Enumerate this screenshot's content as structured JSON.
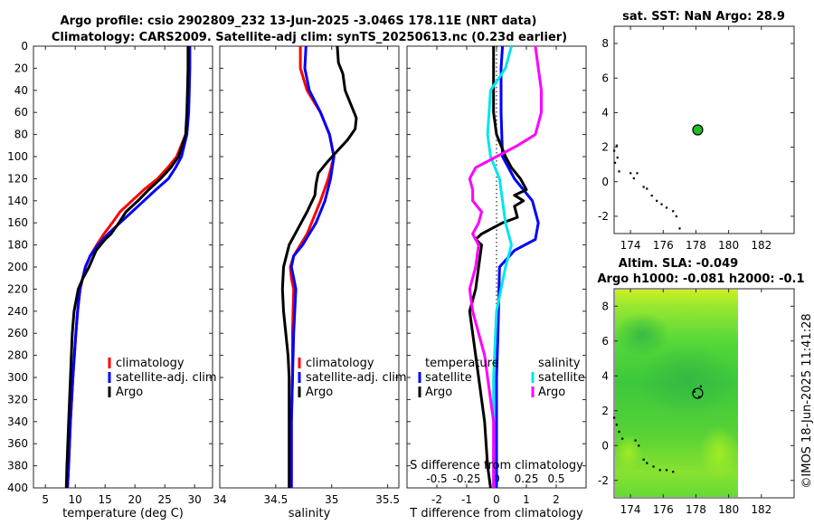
{
  "figure": {
    "title_line1": "Argo profile: csio 2902809_232 13-Jun-2025 -3.046S 178.11E (NRT data)",
    "title_line2": "Climatology: CARS2009. Satellite-adj clim: synTS_20250613.nc (0.23d earlier)",
    "credit": "©IMOS 18-Jun-2025 11:41:28"
  },
  "colors": {
    "climatology": "#ff0000",
    "satellite": "#0000ff",
    "argo": "#000000",
    "salinity_satellite": "#00e5ee",
    "salinity_argo": "#ff00ff",
    "map_green": "#44dd33",
    "marker": "#22bb22"
  },
  "chart_data": [
    {
      "type": "line",
      "id": "temperature",
      "xlabel": "temperature (deg C)",
      "xlim": [
        3,
        33
      ],
      "ylim": [
        0,
        400
      ],
      "xticks": [
        "5",
        "10",
        "15",
        "20",
        "25",
        "30"
      ],
      "xtick_values": [
        5,
        10,
        15,
        20,
        25,
        30
      ],
      "yticks": [
        "0",
        "20",
        "40",
        "60",
        "80",
        "100",
        "120",
        "140",
        "160",
        "180",
        "200",
        "220",
        "240",
        "260",
        "280",
        "300",
        "320",
        "340",
        "360",
        "380",
        "400"
      ],
      "legend": [
        "climatology",
        "satellite-adj. clim",
        "Argo"
      ],
      "series": [
        {
          "name": "climatology",
          "color_key": "climatology",
          "depth": [
            0,
            20,
            40,
            60,
            80,
            100,
            110,
            120,
            130,
            140,
            150,
            160,
            170,
            180,
            190,
            200,
            220,
            240,
            260,
            300,
            340,
            380,
            400
          ],
          "values": [
            29.0,
            29.0,
            28.9,
            28.8,
            28.5,
            27.0,
            25.5,
            23.8,
            21.5,
            19.5,
            17.5,
            16.2,
            14.8,
            13.6,
            12.5,
            11.7,
            10.8,
            10.4,
            10.1,
            9.6,
            9.2,
            8.9,
            8.7
          ]
        },
        {
          "name": "satellite-adj. clim",
          "color_key": "satellite",
          "depth": [
            0,
            20,
            40,
            60,
            80,
            100,
            110,
            120,
            130,
            140,
            150,
            160,
            170,
            180,
            190,
            200,
            220,
            240,
            260,
            300,
            340,
            380,
            400
          ],
          "values": [
            29.2,
            29.2,
            29.1,
            29.0,
            28.7,
            27.8,
            26.8,
            25.6,
            23.5,
            21.5,
            19.5,
            17.5,
            15.5,
            13.8,
            12.5,
            11.7,
            10.8,
            10.4,
            10.1,
            9.6,
            9.2,
            8.9,
            8.7
          ]
        },
        {
          "name": "Argo",
          "color_key": "argo",
          "depth": [
            0,
            20,
            40,
            60,
            80,
            100,
            110,
            120,
            130,
            140,
            150,
            160,
            170,
            175,
            185,
            200,
            210,
            220,
            240,
            260,
            300,
            340,
            380,
            400
          ],
          "values": [
            28.9,
            28.9,
            28.8,
            28.7,
            28.5,
            27.3,
            26.0,
            24.3,
            22.3,
            20.5,
            18.5,
            17.3,
            16.0,
            15.0,
            13.5,
            12.3,
            11.3,
            10.5,
            9.8,
            9.5,
            9.2,
            8.9,
            8.6,
            8.5
          ]
        }
      ]
    },
    {
      "type": "line",
      "id": "salinity",
      "xlabel": "salinity",
      "xlim": [
        34.0,
        35.6
      ],
      "ylim": [
        0,
        400
      ],
      "xticks": [
        "34",
        "34.5",
        "35",
        "35.5"
      ],
      "xtick_values": [
        34.0,
        34.5,
        35.0,
        35.5
      ],
      "legend": [
        "climatology",
        "satellite-adj. clim",
        "Argo"
      ],
      "series": [
        {
          "name": "climatology",
          "color_key": "climatology",
          "depth": [
            0,
            20,
            40,
            60,
            80,
            100,
            120,
            140,
            160,
            170,
            180,
            190,
            200,
            210,
            220,
            260,
            300,
            340,
            380,
            400
          ],
          "values": [
            34.72,
            34.72,
            34.78,
            34.9,
            34.98,
            35.02,
            34.97,
            34.9,
            34.82,
            34.78,
            34.72,
            34.66,
            34.63,
            34.64,
            34.66,
            34.65,
            34.65,
            34.64,
            34.64,
            34.64
          ]
        },
        {
          "name": "satellite-adj. clim",
          "color_key": "satellite",
          "depth": [
            0,
            20,
            40,
            60,
            80,
            100,
            120,
            140,
            160,
            170,
            180,
            190,
            200,
            210,
            220,
            260,
            300,
            340,
            380,
            400
          ],
          "values": [
            34.77,
            34.76,
            34.8,
            34.9,
            34.98,
            35.02,
            34.99,
            34.94,
            34.86,
            34.8,
            34.74,
            34.66,
            34.64,
            34.66,
            34.68,
            34.66,
            34.65,
            34.64,
            34.64,
            34.64
          ]
        },
        {
          "name": "Argo",
          "color_key": "argo",
          "depth": [
            0,
            15,
            25,
            40,
            55,
            65,
            75,
            85,
            95,
            105,
            115,
            125,
            135,
            150,
            165,
            180,
            200,
            220,
            240,
            260,
            280,
            300,
            340,
            380,
            400
          ],
          "values": [
            35.05,
            35.06,
            35.1,
            35.12,
            35.18,
            35.22,
            35.21,
            35.14,
            35.05,
            34.96,
            34.88,
            34.86,
            34.85,
            34.78,
            34.7,
            34.62,
            34.57,
            34.56,
            34.57,
            34.59,
            34.61,
            34.62,
            34.62,
            34.62,
            34.62
          ]
        }
      ]
    },
    {
      "type": "line",
      "id": "difference",
      "xlabel": "T difference from climatology",
      "xlabel_top": "S difference from climatology",
      "xlim": [
        -3,
        3
      ],
      "ylim": [
        0,
        400
      ],
      "xticks": [
        "-2",
        "-1",
        "0",
        "1",
        "2"
      ],
      "xtick_values": [
        -2,
        -1,
        0,
        1,
        2
      ],
      "top_ticks": [
        "-0.5",
        "-0.25",
        "0",
        "0.25",
        "0.5"
      ],
      "top_tick_values": [
        -0.5,
        -0.25,
        0,
        0.25,
        0.5
      ],
      "top_scale": 4,
      "legend_temperature_title": "temperature",
      "legend_salinity_title": "salinity",
      "legend_temperature": [
        "satellite",
        "Argo"
      ],
      "legend_salinity": [
        "satellite",
        "Argo"
      ],
      "series": [
        {
          "name": "T satellite",
          "color_key": "satellite",
          "depth": [
            0,
            20,
            60,
            100,
            120,
            140,
            160,
            175,
            185,
            200,
            260,
            300,
            340,
            400
          ],
          "values": [
            0.2,
            0.15,
            0.15,
            0.2,
            0.6,
            1.2,
            1.4,
            1.3,
            0.6,
            0.1,
            0.05,
            0.0,
            0.0,
            0.0
          ]
        },
        {
          "name": "T Argo",
          "color_key": "argo",
          "depth": [
            0,
            20,
            40,
            60,
            80,
            100,
            110,
            120,
            130,
            135,
            140,
            145,
            155,
            160,
            170,
            175,
            180,
            200,
            220,
            230,
            240,
            260,
            300,
            340,
            380,
            400
          ],
          "values": [
            -0.1,
            -0.1,
            -0.1,
            -0.1,
            0.0,
            0.3,
            0.5,
            0.8,
            1.0,
            0.6,
            0.9,
            0.6,
            0.7,
            0.2,
            -0.5,
            -0.7,
            -0.5,
            -0.6,
            -0.7,
            -0.8,
            -0.9,
            -0.8,
            -0.6,
            -0.4,
            -0.3,
            -0.2
          ]
        },
        {
          "name": "S satellite",
          "color_key": "salinity_satellite",
          "depth": [
            0,
            20,
            40,
            80,
            100,
            120,
            140,
            160,
            180,
            200,
            240,
            300,
            340,
            400
          ],
          "values": [
            0.5,
            0.3,
            -0.2,
            -0.3,
            -0.2,
            0.1,
            0.2,
            0.3,
            0.5,
            0.3,
            0.0,
            -0.1,
            -0.1,
            -0.1
          ]
        },
        {
          "name": "S Argo",
          "color_key": "salinity_argo",
          "depth": [
            0,
            20,
            40,
            60,
            80,
            90,
            100,
            110,
            120,
            130,
            140,
            150,
            160,
            170,
            180,
            200,
            220,
            240,
            260,
            280,
            300,
            340,
            380,
            400
          ],
          "values": [
            1.3,
            1.4,
            1.5,
            1.5,
            1.3,
            0.7,
            0.0,
            -0.7,
            -0.9,
            -0.8,
            -0.8,
            -0.5,
            -0.6,
            -0.8,
            -0.6,
            -0.7,
            -0.9,
            -0.8,
            -0.6,
            -0.4,
            -0.3,
            -0.1,
            -0.1,
            -0.1
          ]
        }
      ]
    },
    {
      "type": "scatter",
      "id": "sst_map",
      "title": "sat. SST: NaN Argo: 28.9",
      "xlim": [
        173,
        184
      ],
      "ylim": [
        -3,
        9
      ],
      "xticks": [
        "174",
        "176",
        "178",
        "180",
        "182"
      ],
      "xtick_values": [
        174,
        176,
        178,
        180,
        182
      ],
      "yticks": [
        "-2",
        "0",
        "2",
        "4",
        "6",
        "8"
      ],
      "ytick_values": [
        -2,
        0,
        2,
        4,
        6,
        8
      ],
      "argo_position": [
        178.11,
        3.0
      ],
      "coast_points": [
        [
          173.0,
          1.8
        ],
        [
          173.15,
          2.1
        ],
        [
          173.2,
          1.4
        ],
        [
          173.05,
          1.1
        ],
        [
          173.3,
          0.6
        ],
        [
          174.0,
          0.5
        ],
        [
          174.2,
          0.2
        ],
        [
          174.4,
          0.5
        ],
        [
          174.8,
          -0.3
        ],
        [
          175.0,
          -0.4
        ],
        [
          175.3,
          -0.8
        ],
        [
          175.6,
          -1.1
        ],
        [
          175.9,
          -1.3
        ],
        [
          176.2,
          -1.5
        ],
        [
          176.6,
          -1.7
        ],
        [
          176.8,
          -2.0
        ],
        [
          177.0,
          -2.7
        ]
      ]
    },
    {
      "type": "heatmap",
      "id": "sla_map",
      "title_line1": "Altim. SLA: -0.049",
      "title_line2": "Argo h1000: -0.081 h2000: -0.1",
      "xlim": [
        173,
        184
      ],
      "ylim": [
        -3,
        9
      ],
      "data_xlim": [
        173,
        180
      ],
      "xticks": [
        "174",
        "176",
        "178",
        "180",
        "182"
      ],
      "xtick_values": [
        174,
        176,
        178,
        180,
        182
      ],
      "yticks": [
        "-2",
        "0",
        "2",
        "4",
        "6",
        "8"
      ],
      "ytick_values": [
        -2,
        0,
        2,
        4,
        6,
        8
      ],
      "argo_position": [
        178.11,
        3.0
      ],
      "coast_points": [
        [
          173.0,
          1.6
        ],
        [
          173.15,
          1.2
        ],
        [
          173.3,
          0.8
        ],
        [
          173.5,
          0.4
        ],
        [
          174.3,
          0.3
        ],
        [
          174.5,
          0.0
        ],
        [
          174.8,
          -0.8
        ],
        [
          175.0,
          -1.0
        ],
        [
          175.4,
          -1.2
        ],
        [
          175.8,
          -1.4
        ],
        [
          176.2,
          -1.4
        ],
        [
          176.6,
          -1.5
        ],
        [
          178.2,
          2.8
        ],
        [
          178.3,
          3.4
        ],
        [
          177.9,
          3.1
        ]
      ]
    }
  ]
}
